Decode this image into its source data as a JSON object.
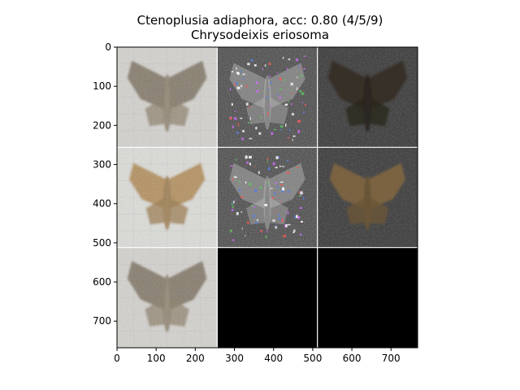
{
  "title": "Ctenoplusia adiaphora, acc: 0.80 (4/5/9)",
  "subtitle": "Chrysodeixis eriosoma",
  "colors": {
    "background": "#ffffff",
    "axes": "#000000",
    "grid_separator": "#ffffff",
    "black_panel": "#000000",
    "photo_bg": "#d4d2ce",
    "moth_body": "#8a7c68",
    "heatmap_bg": "#3c3c3c"
  },
  "chart_data": {
    "type": "image-grid",
    "grid": {
      "rows": 3,
      "cols": 3,
      "tile_size": 256
    },
    "xlim": [
      0,
      768
    ],
    "ylim": [
      768,
      0
    ],
    "x_ticks": [
      0,
      100,
      200,
      300,
      400,
      500,
      600,
      700
    ],
    "y_ticks": [
      0,
      100,
      200,
      300,
      400,
      500,
      600,
      700
    ],
    "tiles": [
      {
        "row": 0,
        "col": 0,
        "kind": "photo",
        "icon": "moth-photo-icon"
      },
      {
        "row": 0,
        "col": 1,
        "kind": "noise-saliency",
        "icon": "noise-saliency-icon"
      },
      {
        "row": 0,
        "col": 2,
        "kind": "dim-overlay",
        "icon": "dim-moth-icon"
      },
      {
        "row": 1,
        "col": 0,
        "kind": "photo-light",
        "icon": "moth-photo-icon"
      },
      {
        "row": 1,
        "col": 1,
        "kind": "noise-saliency",
        "icon": "noise-saliency-icon"
      },
      {
        "row": 1,
        "col": 2,
        "kind": "dim-overlay",
        "icon": "dim-moth-icon"
      },
      {
        "row": 2,
        "col": 0,
        "kind": "photo",
        "icon": "moth-photo-icon"
      },
      {
        "row": 2,
        "col": 1,
        "kind": "black",
        "icon": "blank-panel-icon"
      },
      {
        "row": 2,
        "col": 2,
        "kind": "black",
        "icon": "blank-panel-icon"
      }
    ]
  }
}
